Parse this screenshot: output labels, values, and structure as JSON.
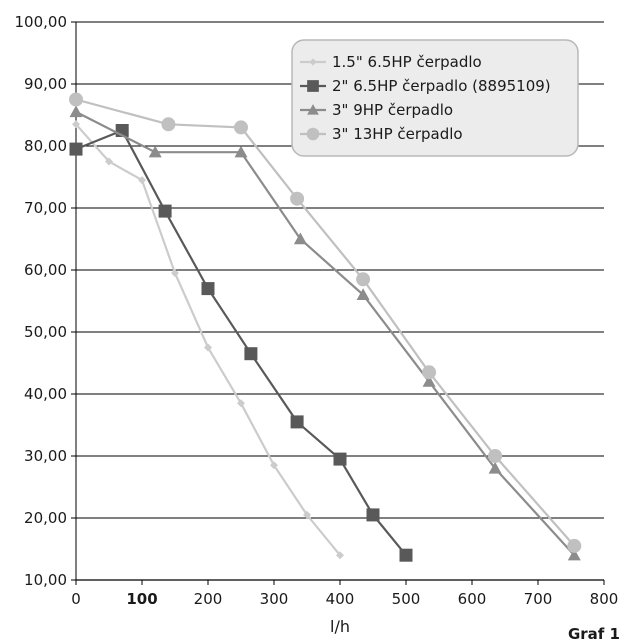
{
  "chart_data": {
    "type": "line",
    "title": "",
    "xlabel": "l/h",
    "ylabel": "",
    "caption": "Graf 1",
    "xlim": [
      0,
      800
    ],
    "ylim": [
      10,
      100
    ],
    "x_ticks": [
      "0",
      "100",
      "200",
      "300",
      "400",
      "500",
      "600",
      "700",
      "800"
    ],
    "x_ticks_bold": [
      "100"
    ],
    "y_ticks": [
      "10,00",
      "20,00",
      "30,00",
      "40,00",
      "50,00",
      "60,00",
      "70,00",
      "80,00",
      "90,00",
      "100,00"
    ],
    "grid": "horizontal",
    "legend_position": "top-right",
    "series": [
      {
        "name": "1.5\" 6.5HP čerpadlo",
        "color": "#cccccc",
        "marker": "diamond",
        "points": [
          [
            0,
            83.5
          ],
          [
            50,
            77.5
          ],
          [
            100,
            74.5
          ],
          [
            150,
            59.5
          ],
          [
            200,
            47.5
          ],
          [
            250,
            38.5
          ],
          [
            300,
            28.5
          ],
          [
            350,
            20.5
          ],
          [
            400,
            14
          ]
        ]
      },
      {
        "name": "2\" 6.5HP čerpadlo (8895109)",
        "color": "#595959",
        "marker": "square",
        "points": [
          [
            0,
            79.5
          ],
          [
            70,
            82.5
          ],
          [
            135,
            69.5
          ],
          [
            200,
            57
          ],
          [
            265,
            46.5
          ],
          [
            335,
            35.5
          ],
          [
            400,
            29.5
          ],
          [
            450,
            20.5
          ],
          [
            500,
            14
          ]
        ]
      },
      {
        "name": "3\" 9HP čerpadlo",
        "color": "#8c8c8c",
        "marker": "triangle",
        "points": [
          [
            0,
            85.5
          ],
          [
            120,
            79
          ],
          [
            250,
            79
          ],
          [
            340,
            65
          ],
          [
            435,
            56
          ],
          [
            535,
            42
          ],
          [
            635,
            28
          ],
          [
            755,
            14
          ]
        ]
      },
      {
        "name": "3\" 13HP čerpadlo",
        "color": "#c0c0c0",
        "marker": "circle",
        "points": [
          [
            0,
            87.5
          ],
          [
            140,
            83.5
          ],
          [
            250,
            83
          ],
          [
            335,
            71.5
          ],
          [
            435,
            58.5
          ],
          [
            535,
            43.5
          ],
          [
            635,
            30
          ],
          [
            755,
            15.5
          ]
        ]
      }
    ]
  }
}
